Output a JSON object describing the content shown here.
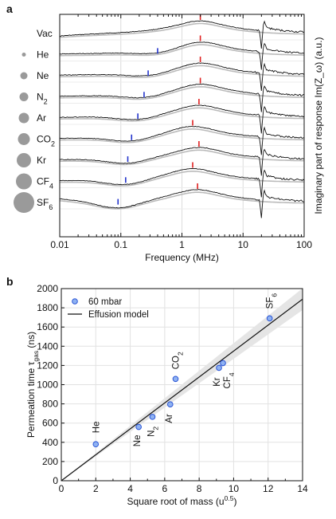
{
  "chart_data": [
    {
      "panel": "a",
      "type": "line",
      "xlabel": "Frequency (MHz)",
      "ylabel": "Imaginary part of response Im(Z_ω) (a.u.)",
      "xscale": "log",
      "xlim": [
        0.01,
        100
      ],
      "x_ticks": [
        "0.01",
        "0.1",
        "1",
        "10",
        "100"
      ],
      "grid": true,
      "gases": [
        "Vac",
        "He",
        "Ne",
        "N2",
        "Ar",
        "CO2",
        "Kr",
        "CF4",
        "SF6"
      ],
      "gas_label_display": [
        {
          "main": "Vac",
          "sub": ""
        },
        {
          "main": "He",
          "sub": ""
        },
        {
          "main": "Ne",
          "sub": ""
        },
        {
          "main": "N",
          "sub": "2"
        },
        {
          "main": "Ar",
          "sub": ""
        },
        {
          "main": "CO",
          "sub": "2"
        },
        {
          "main": "Kr",
          "sub": ""
        },
        {
          "main": "CF",
          "sub": "4"
        },
        {
          "main": "SF",
          "sub": "6"
        }
      ],
      "blue_marker_freq_MHz": [
        null,
        0.4,
        0.28,
        0.24,
        0.19,
        0.15,
        0.13,
        0.12,
        0.09
      ],
      "red_marker_freq_MHz": [
        2.0,
        2.0,
        2.0,
        2.0,
        1.9,
        1.5,
        1.9,
        1.5,
        1.8
      ],
      "colors": {
        "data": "#111111",
        "fit": "#bbbbbb",
        "blue_marker": "#2233cc",
        "red_marker": "#e02020",
        "bubble": "#9a9a9a"
      }
    },
    {
      "panel": "b",
      "type": "scatter",
      "xlabel": "Square root of mass (u",
      "xlabel_sup": "0.5",
      "xlabel_end": ")",
      "ylabel": "Permeation time τ",
      "ylabel_sub": "gas",
      "ylabel_end": " (ns)",
      "xlim": [
        0,
        14
      ],
      "ylim": [
        0,
        2000
      ],
      "x_ticks": [
        0,
        2,
        4,
        6,
        8,
        10,
        12,
        14
      ],
      "y_ticks": [
        0,
        200,
        400,
        600,
        800,
        1000,
        1200,
        1400,
        1600,
        1800,
        2000
      ],
      "grid": true,
      "legend_position": "top-left",
      "series": [
        {
          "name": "60 mbar",
          "points": [
            {
              "label": "He",
              "label_sub": "",
              "x": 2.0,
              "y": 380
            },
            {
              "label": "Ne",
              "label_sub": "",
              "x": 4.49,
              "y": 560
            },
            {
              "label": "N",
              "label_sub": "2",
              "x": 5.29,
              "y": 665
            },
            {
              "label": "Ar",
              "label_sub": "",
              "x": 6.32,
              "y": 795
            },
            {
              "label": "CO",
              "label_sub": "2",
              "x": 6.63,
              "y": 1060
            },
            {
              "label": "Kr",
              "label_sub": "",
              "x": 9.15,
              "y": 1175
            },
            {
              "label": "CF",
              "label_sub": "4",
              "x": 9.38,
              "y": 1225
            },
            {
              "label": "SF",
              "label_sub": "6",
              "x": 12.09,
              "y": 1690
            }
          ]
        },
        {
          "name": "Effusion model",
          "line": {
            "x": [
              0,
              14
            ],
            "y": [
              0,
              1890
            ]
          }
        }
      ],
      "colors": {
        "marker_fill": "#8fb2f2",
        "marker_edge": "#2a55d6",
        "model_line": "#111111",
        "band": "#e5e5e5"
      }
    }
  ]
}
